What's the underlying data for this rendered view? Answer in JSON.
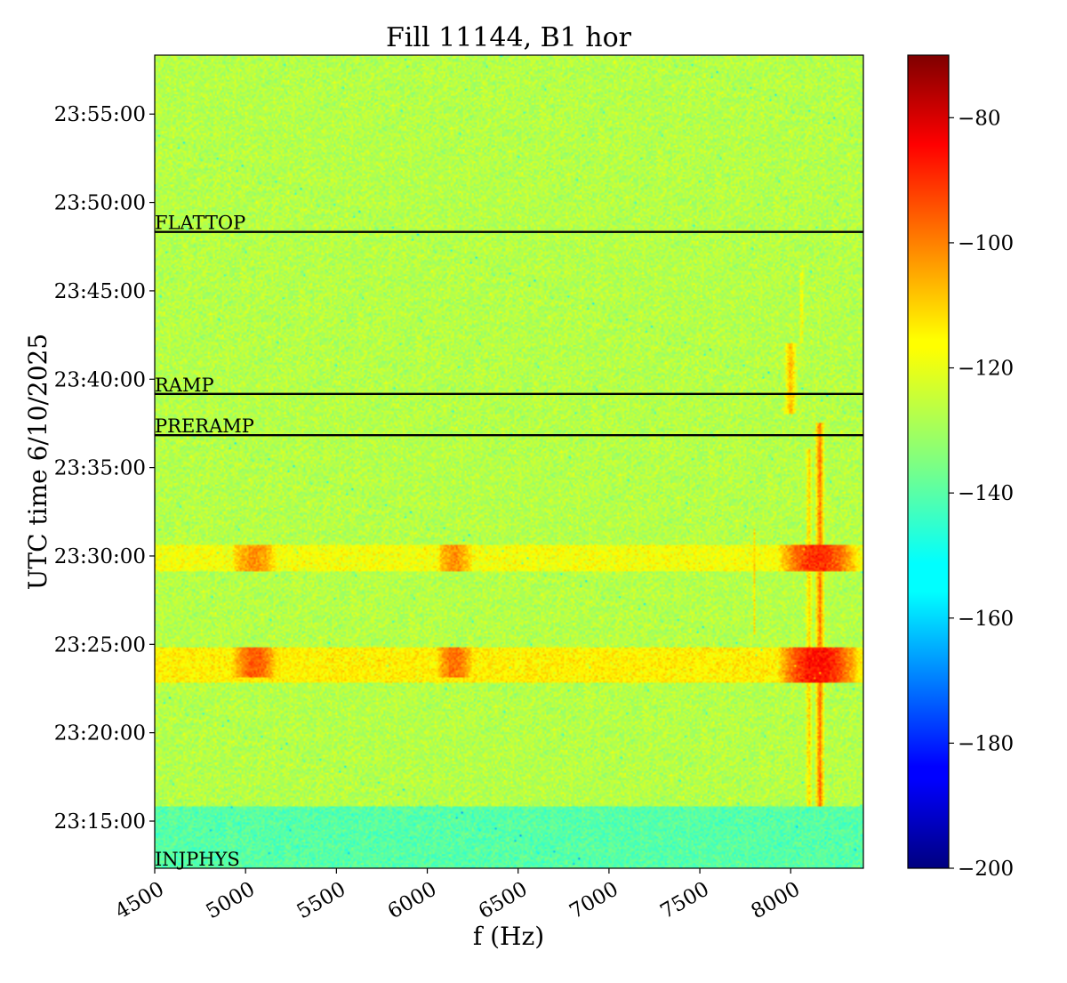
{
  "chart_data": {
    "type": "heatmap",
    "title": "Fill 11144, B1 hor",
    "xlabel": "f (Hz)",
    "ylabel": "UTC time 6/10/2025",
    "xlim": [
      4500,
      8400
    ],
    "ylim": [
      "23:12:20",
      "23:58:20"
    ],
    "x_ticks": [
      {
        "value": 4500,
        "label": "4500"
      },
      {
        "value": 5000,
        "label": "5000"
      },
      {
        "value": 5500,
        "label": "5500"
      },
      {
        "value": 6000,
        "label": "6000"
      },
      {
        "value": 6500,
        "label": "6500"
      },
      {
        "value": 7000,
        "label": "7000"
      },
      {
        "value": 7500,
        "label": "7500"
      },
      {
        "value": 8000,
        "label": "8000"
      }
    ],
    "y_ticks": [
      {
        "value": "23:15:00",
        "label": "23:15:00"
      },
      {
        "value": "23:20:00",
        "label": "23:20:00"
      },
      {
        "value": "23:25:00",
        "label": "23:25:00"
      },
      {
        "value": "23:30:00",
        "label": "23:30:00"
      },
      {
        "value": "23:35:00",
        "label": "23:35:00"
      },
      {
        "value": "23:40:00",
        "label": "23:40:00"
      },
      {
        "value": "23:45:00",
        "label": "23:45:00"
      },
      {
        "value": "23:50:00",
        "label": "23:50:00"
      },
      {
        "value": "23:55:00",
        "label": "23:55:00"
      }
    ],
    "colorbar": {
      "colormap": "jet",
      "range": [
        -200,
        -70
      ],
      "ticks": [
        {
          "value": -80,
          "label": "−80"
        },
        {
          "value": -100,
          "label": "−100"
        },
        {
          "value": -120,
          "label": "−120"
        },
        {
          "value": -140,
          "label": "−140"
        },
        {
          "value": -160,
          "label": "−160"
        },
        {
          "value": -180,
          "label": "−180"
        },
        {
          "value": -200,
          "label": "−200"
        }
      ]
    },
    "background_level": -128,
    "bands": [
      {
        "time_start": "23:12:20",
        "time_end": "23:15:50",
        "level": -140
      },
      {
        "time_start": "23:22:50",
        "time_end": "23:24:50",
        "level": -117
      },
      {
        "time_start": "23:29:10",
        "time_end": "23:30:40",
        "level": -120
      }
    ],
    "hotspots": [
      {
        "f_center": 5050,
        "f_width": 250,
        "time_start": "23:23:10",
        "time_end": "23:24:50",
        "level": -98
      },
      {
        "f_center": 6150,
        "f_width": 200,
        "time_start": "23:23:10",
        "time_end": "23:24:50",
        "level": -100
      },
      {
        "f_center": 8150,
        "f_width": 450,
        "time_start": "23:22:50",
        "time_end": "23:24:50",
        "level": -88
      },
      {
        "f_center": 5050,
        "f_width": 250,
        "time_start": "23:29:10",
        "time_end": "23:30:40",
        "level": -105
      },
      {
        "f_center": 6150,
        "f_width": 200,
        "time_start": "23:29:10",
        "time_end": "23:30:40",
        "level": -105
      },
      {
        "f_center": 8150,
        "f_width": 450,
        "time_start": "23:29:10",
        "time_end": "23:30:40",
        "level": -92
      }
    ],
    "lines": [
      {
        "f": 8160,
        "f_width": 60,
        "time_start": "23:15:50",
        "time_end": "23:37:30",
        "level": -100
      },
      {
        "f": 8100,
        "f_width": 40,
        "time_start": "23:15:50",
        "time_end": "23:36:00",
        "level": -112
      },
      {
        "f": 7800,
        "f_width": 20,
        "time_start": "23:25:30",
        "time_end": "23:31:30",
        "level": -115
      },
      {
        "f": 8000,
        "f_width": 80,
        "time_start": "23:38:00",
        "time_end": "23:42:00",
        "level": -108
      },
      {
        "f": 8060,
        "f_width": 30,
        "time_start": "23:42:00",
        "time_end": "23:46:00",
        "level": -118
      }
    ],
    "phases": [
      {
        "name": "INJPHYS",
        "time": "23:12:20"
      },
      {
        "name": "PRERAMP",
        "time": "23:36:50"
      },
      {
        "name": "RAMP",
        "time": "23:39:10"
      },
      {
        "name": "FLATTOP",
        "time": "23:48:20"
      }
    ]
  }
}
